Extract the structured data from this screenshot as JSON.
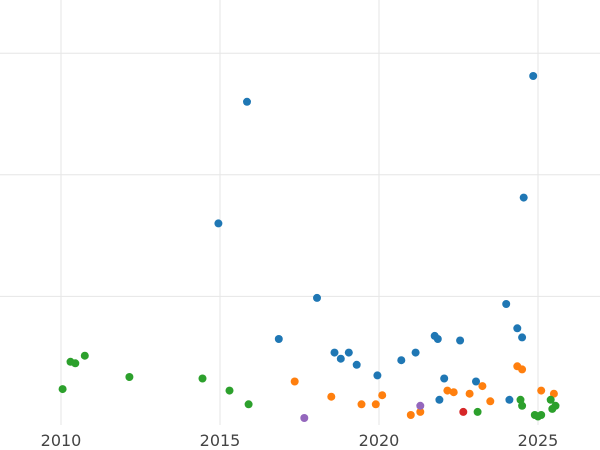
{
  "chart_data": {
    "type": "scatter",
    "title": "",
    "xlabel": "",
    "ylabel": "",
    "xlim": [
      2010,
      2027
    ],
    "ylim": [
      0,
      14
    ],
    "x_ticks": [
      2010,
      2015,
      2020,
      2025
    ],
    "x_tick_labels": [
      "2010",
      "2015",
      "2020",
      "2025"
    ],
    "y_gridlines": [
      4,
      8,
      12
    ],
    "grid": true,
    "legend": "none",
    "series": [
      {
        "color": "#1f77b4",
        "points": [
          {
            "x": 2014.95,
            "y": 6.4
          },
          {
            "x": 2015.85,
            "y": 10.4
          },
          {
            "x": 2016.85,
            "y": 2.6
          },
          {
            "x": 2018.05,
            "y": 3.95
          },
          {
            "x": 2018.6,
            "y": 2.15
          },
          {
            "x": 2018.8,
            "y": 1.95
          },
          {
            "x": 2019.05,
            "y": 2.15
          },
          {
            "x": 2019.3,
            "y": 1.75
          },
          {
            "x": 2019.95,
            "y": 1.4
          },
          {
            "x": 2020.7,
            "y": 1.9
          },
          {
            "x": 2021.15,
            "y": 2.15
          },
          {
            "x": 2021.75,
            "y": 2.7
          },
          {
            "x": 2021.85,
            "y": 2.6
          },
          {
            "x": 2021.9,
            "y": 0.6
          },
          {
            "x": 2022.05,
            "y": 1.3
          },
          {
            "x": 2022.55,
            "y": 2.55
          },
          {
            "x": 2023.05,
            "y": 1.2
          },
          {
            "x": 2024.0,
            "y": 3.75
          },
          {
            "x": 2024.1,
            "y": 0.6
          },
          {
            "x": 2024.35,
            "y": 2.95
          },
          {
            "x": 2024.5,
            "y": 2.65
          },
          {
            "x": 2024.55,
            "y": 7.25
          },
          {
            "x": 2024.85,
            "y": 11.25
          }
        ]
      },
      {
        "color": "#ff7f0e",
        "points": [
          {
            "x": 2017.35,
            "y": 1.2
          },
          {
            "x": 2018.5,
            "y": 0.7
          },
          {
            "x": 2019.45,
            "y": 0.45
          },
          {
            "x": 2019.9,
            "y": 0.45
          },
          {
            "x": 2020.1,
            "y": 0.75
          },
          {
            "x": 2021.0,
            "y": 0.1
          },
          {
            "x": 2021.3,
            "y": 0.2
          },
          {
            "x": 2022.15,
            "y": 0.9
          },
          {
            "x": 2022.35,
            "y": 0.85
          },
          {
            "x": 2022.85,
            "y": 0.8
          },
          {
            "x": 2023.25,
            "y": 1.05
          },
          {
            "x": 2023.5,
            "y": 0.55
          },
          {
            "x": 2024.35,
            "y": 1.7
          },
          {
            "x": 2024.5,
            "y": 1.6
          },
          {
            "x": 2025.1,
            "y": 0.9
          },
          {
            "x": 2025.5,
            "y": 0.8
          }
        ]
      },
      {
        "color": "#2ca02c",
        "points": [
          {
            "x": 2010.05,
            "y": 0.95
          },
          {
            "x": 2010.3,
            "y": 1.85
          },
          {
            "x": 2010.45,
            "y": 1.8
          },
          {
            "x": 2010.75,
            "y": 2.05
          },
          {
            "x": 2012.15,
            "y": 1.35
          },
          {
            "x": 2014.45,
            "y": 1.3
          },
          {
            "x": 2015.3,
            "y": 0.9
          },
          {
            "x": 2015.9,
            "y": 0.45
          },
          {
            "x": 2023.1,
            "y": 0.2
          },
          {
            "x": 2024.45,
            "y": 0.6
          },
          {
            "x": 2024.5,
            "y": 0.4
          },
          {
            "x": 2024.9,
            "y": 0.1
          },
          {
            "x": 2025.0,
            "y": 0.05
          },
          {
            "x": 2025.1,
            "y": 0.1
          },
          {
            "x": 2025.4,
            "y": 0.6
          },
          {
            "x": 2025.45,
            "y": 0.3
          },
          {
            "x": 2025.55,
            "y": 0.4
          }
        ]
      },
      {
        "color": "#d62728",
        "points": [
          {
            "x": 2022.65,
            "y": 0.2
          }
        ]
      },
      {
        "color": "#9467bd",
        "points": [
          {
            "x": 2017.65,
            "y": 0.0
          },
          {
            "x": 2021.3,
            "y": 0.4
          }
        ]
      }
    ]
  }
}
